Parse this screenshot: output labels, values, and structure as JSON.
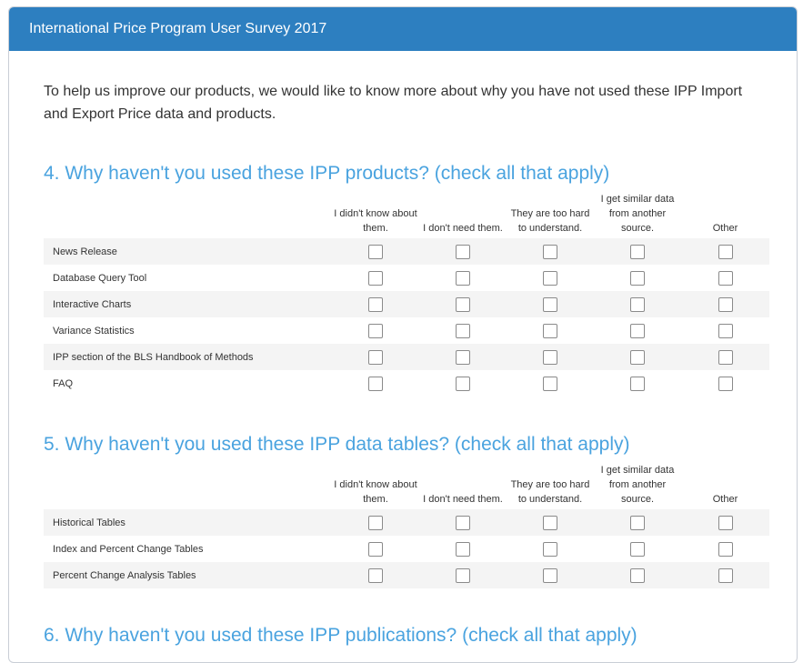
{
  "header": {
    "title": "International Price Program User Survey 2017"
  },
  "intro": "To help us improve our products, we would like to know more about why you have not used these IPP Import and Export Price data and products.",
  "columns": [
    "I didn't know about them.",
    "I don't need them.",
    "They are too hard to understand.",
    "I get similar data from another source.",
    "Other"
  ],
  "q4": {
    "title": "4. Why haven't you used these IPP products? (check all that apply)",
    "rows": [
      "News Release",
      "Database Query Tool",
      "Interactive Charts",
      "Variance Statistics",
      "IPP section of the BLS Handbook of Methods",
      "FAQ"
    ]
  },
  "q5": {
    "title": "5. Why haven't you used these IPP data tables? (check all that apply)",
    "rows": [
      "Historical Tables",
      "Index and Percent Change Tables",
      "Percent Change Analysis Tables"
    ]
  },
  "q6": {
    "title": "6. Why haven't you used these IPP publications? (check all that apply)"
  }
}
